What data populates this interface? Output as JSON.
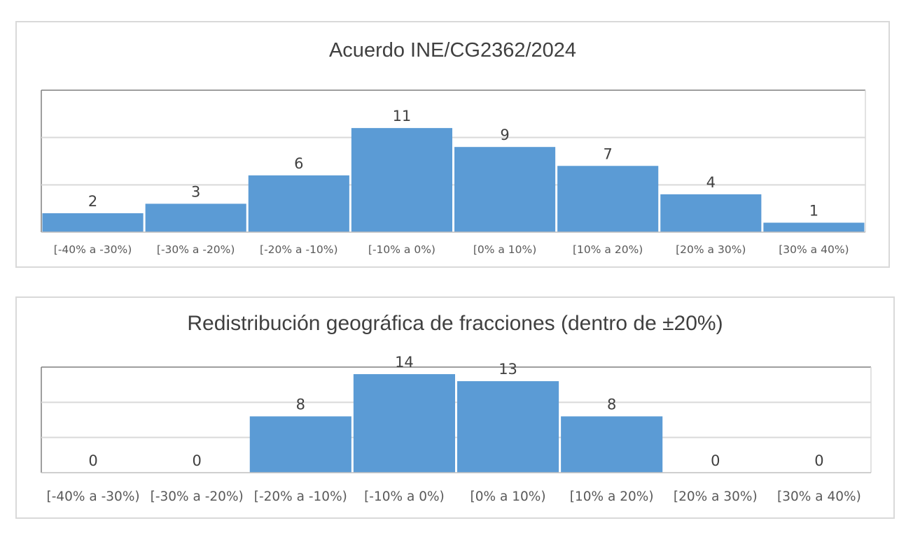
{
  "chart_data": [
    {
      "type": "bar",
      "title": "Acuerdo INE/CG2362/2024",
      "categories": [
        "[-40% a  -30%)",
        "[-30% a  -20%)",
        "[-20% a  -10%)",
        "[-10% a  0%)",
        "[0% a  10%)",
        "[10% a  20%)",
        "[20% a  30%)",
        "[30% a  40%)"
      ],
      "values": [
        2,
        3,
        6,
        11,
        9,
        7,
        4,
        1
      ],
      "value_labels": [
        "2",
        "3",
        "6",
        "11",
        "9",
        "7",
        "4",
        "1"
      ],
      "ylim": [
        0,
        15
      ],
      "grid": true,
      "bar_color": "#5b9bd5"
    },
    {
      "type": "bar",
      "title": "Redistribución geográfica de fracciones (dentro de ±20%)",
      "categories": [
        "[-40% a  -30%)",
        "[-30% a  -20%)",
        "[-20% a  -10%)",
        "[-10% a  0%)",
        "[0% a  10%)",
        "[10% a  20%)",
        "[20% a  30%)",
        "[30% a  40%)"
      ],
      "values": [
        0,
        0,
        8,
        14,
        13,
        8,
        0,
        0
      ],
      "value_labels": [
        "0",
        "0",
        "8",
        "14",
        "13",
        "8",
        "0",
        "0"
      ],
      "ylim": [
        0,
        15
      ],
      "grid": true,
      "bar_color": "#5b9bd5"
    }
  ]
}
